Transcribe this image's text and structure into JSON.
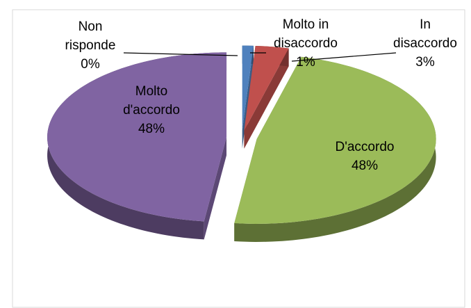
{
  "chart_data": {
    "type": "pie",
    "categories": [
      "Molto in disaccordo",
      "In disaccordo",
      "D'accordo",
      "Molto d'accordo",
      "Non risponde"
    ],
    "values": [
      1,
      3,
      48,
      48,
      0
    ],
    "value_labels": [
      "1%",
      "3%",
      "48%",
      "48%",
      "0%"
    ],
    "colors": [
      "#4f81bd",
      "#c0504d",
      "#9bbb59",
      "#8064a2",
      "#f79646"
    ]
  }
}
